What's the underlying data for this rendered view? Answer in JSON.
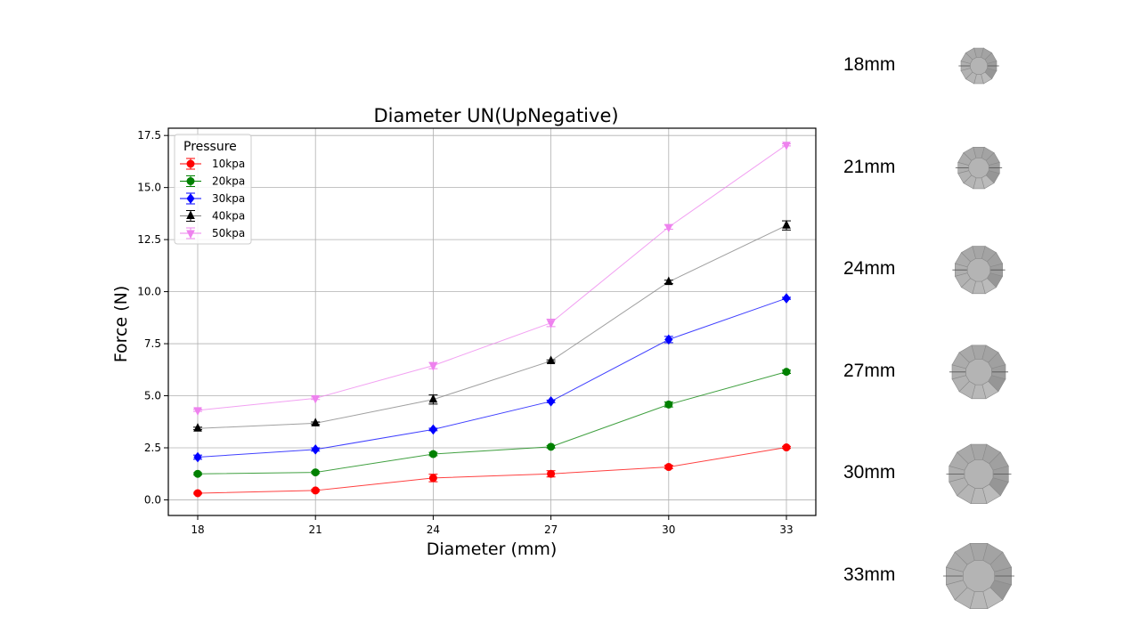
{
  "chart_data": {
    "type": "line",
    "title": "Diameter UN(UpNegative)",
    "xlabel": "Diameter (mm)",
    "ylabel": "Force (N)",
    "x": [
      18,
      21,
      24,
      27,
      30,
      33
    ],
    "x_ticks": [
      "18",
      "21",
      "24",
      "27",
      "30",
      "33"
    ],
    "ylim": [
      -0.75,
      17.85
    ],
    "y_ticks": [
      "0.0",
      "2.5",
      "5.0",
      "7.5",
      "10.0",
      "12.5",
      "15.0",
      "17.5"
    ],
    "y_tick_values": [
      0,
      2.5,
      5,
      7.5,
      10,
      12.5,
      15,
      17.5
    ],
    "grid": true,
    "legend": {
      "title": "Pressure",
      "placement": "top-left"
    },
    "series": [
      {
        "name": "10kpa",
        "color": "#ff0000",
        "marker": "circle",
        "values": [
          0.32,
          0.45,
          1.05,
          1.25,
          1.58,
          2.52
        ],
        "errors": [
          0.04,
          0.05,
          0.18,
          0.15,
          0.08,
          0.05
        ]
      },
      {
        "name": "20kpa",
        "color": "#008000",
        "marker": "circle",
        "values": [
          1.25,
          1.32,
          2.2,
          2.55,
          4.58,
          6.15
        ],
        "errors": [
          0.05,
          0.05,
          0.08,
          0.06,
          0.12,
          0.08
        ]
      },
      {
        "name": "30kpa",
        "color": "#0000ff",
        "marker": "diamond",
        "values": [
          2.05,
          2.42,
          3.38,
          4.73,
          7.7,
          9.68
        ],
        "errors": [
          0.1,
          0.08,
          0.06,
          0.06,
          0.15,
          0.05
        ]
      },
      {
        "name": "40kpa",
        "color": "#000000",
        "line_color": "#808080",
        "marker": "triangle-up",
        "values": [
          3.43,
          3.68,
          4.82,
          6.67,
          10.47,
          13.18
        ],
        "errors": [
          0.06,
          0.06,
          0.22,
          0.05,
          0.08,
          0.22
        ]
      },
      {
        "name": "50kpa",
        "color": "#ee82ee",
        "marker": "triangle-down",
        "values": [
          4.3,
          4.88,
          6.45,
          8.5,
          13.1,
          17.05
        ],
        "errors": [
          0.05,
          0.06,
          0.15,
          0.18,
          0.1,
          0.05
        ]
      }
    ]
  },
  "sizes": [
    {
      "label": "18mm",
      "diameter": 18
    },
    {
      "label": "21mm",
      "diameter": 21
    },
    {
      "label": "24mm",
      "diameter": 24
    },
    {
      "label": "27mm",
      "diameter": 27
    },
    {
      "label": "30mm",
      "diameter": 30
    },
    {
      "label": "33mm",
      "diameter": 33
    }
  ]
}
